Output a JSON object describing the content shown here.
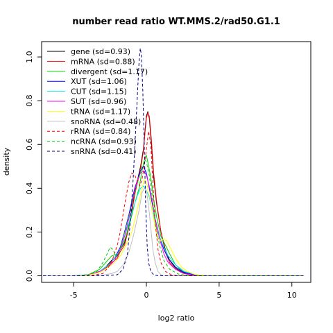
{
  "chart_data": {
    "type": "line",
    "title": "number read ratio WT.MMS.2/rad50.G1.1",
    "xlabel": "log2 ratio",
    "ylabel": "density",
    "xlim": [
      -7.2,
      11.3
    ],
    "ylim": [
      -0.03,
      1.07
    ],
    "x_ticks": [
      -5,
      0,
      5,
      10
    ],
    "y_ticks": [
      0.0,
      0.2,
      0.4,
      0.6,
      0.8,
      1.0
    ],
    "x_tick_labels": [
      "-5",
      "0",
      "5",
      "10"
    ],
    "y_tick_labels": [
      "0.0",
      "0.2",
      "0.4",
      "0.6",
      "0.8",
      "1.0"
    ],
    "grid": false,
    "legend_position": "top-left",
    "series": [
      {
        "name": "gene (sd=0.93)",
        "color": "#000000",
        "dash": "solid",
        "points": [
          [
            -7.1,
            0
          ],
          [
            -5,
            0
          ],
          [
            -4,
            0.005
          ],
          [
            -3.2,
            0.02
          ],
          [
            -2.8,
            0.04
          ],
          [
            -2.4,
            0.07
          ],
          [
            -2.0,
            0.09
          ],
          [
            -1.8,
            0.12
          ],
          [
            -1.5,
            0.15
          ],
          [
            -1.2,
            0.23
          ],
          [
            -1.0,
            0.3
          ],
          [
            -0.8,
            0.38
          ],
          [
            -0.6,
            0.44
          ],
          [
            -0.4,
            0.5
          ],
          [
            -0.2,
            0.58
          ],
          [
            -0.1,
            0.66
          ],
          [
            0.0,
            0.73
          ],
          [
            0.1,
            0.75
          ],
          [
            0.2,
            0.72
          ],
          [
            0.35,
            0.6
          ],
          [
            0.5,
            0.45
          ],
          [
            0.7,
            0.33
          ],
          [
            1.0,
            0.2
          ],
          [
            1.3,
            0.12
          ],
          [
            1.6,
            0.07
          ],
          [
            2.0,
            0.035
          ],
          [
            2.5,
            0.015
          ],
          [
            3.0,
            0.005
          ],
          [
            4,
            0
          ],
          [
            10.8,
            0
          ]
        ]
      },
      {
        "name": "mRNA (sd=0.88)",
        "color": "#ff0000",
        "dash": "solid",
        "points": [
          [
            -7.1,
            0
          ],
          [
            -5,
            0
          ],
          [
            -4,
            0.005
          ],
          [
            -3.2,
            0.02
          ],
          [
            -2.8,
            0.035
          ],
          [
            -2.4,
            0.06
          ],
          [
            -2.0,
            0.08
          ],
          [
            -1.8,
            0.11
          ],
          [
            -1.5,
            0.14
          ],
          [
            -1.2,
            0.22
          ],
          [
            -1.0,
            0.29
          ],
          [
            -0.8,
            0.37
          ],
          [
            -0.6,
            0.43
          ],
          [
            -0.4,
            0.49
          ],
          [
            -0.2,
            0.57
          ],
          [
            -0.1,
            0.65
          ],
          [
            0.0,
            0.72
          ],
          [
            0.1,
            0.745
          ],
          [
            0.2,
            0.73
          ],
          [
            0.35,
            0.62
          ],
          [
            0.5,
            0.47
          ],
          [
            0.7,
            0.34
          ],
          [
            1.0,
            0.2
          ],
          [
            1.3,
            0.11
          ],
          [
            1.6,
            0.06
          ],
          [
            2.0,
            0.03
          ],
          [
            2.5,
            0.012
          ],
          [
            3.0,
            0.004
          ],
          [
            4,
            0
          ],
          [
            10.8,
            0
          ]
        ]
      },
      {
        "name": "divergent (sd=1.17)",
        "color": "#00cd00",
        "dash": "solid",
        "points": [
          [
            -7.1,
            0
          ],
          [
            -5,
            0
          ],
          [
            -4,
            0.005
          ],
          [
            -3.2,
            0.03
          ],
          [
            -2.8,
            0.06
          ],
          [
            -2.4,
            0.09
          ],
          [
            -2.0,
            0.1
          ],
          [
            -1.7,
            0.13
          ],
          [
            -1.4,
            0.18
          ],
          [
            -1.1,
            0.25
          ],
          [
            -0.8,
            0.33
          ],
          [
            -0.5,
            0.4
          ],
          [
            -0.3,
            0.48
          ],
          [
            -0.1,
            0.54
          ],
          [
            0.0,
            0.55
          ],
          [
            0.1,
            0.52
          ],
          [
            0.3,
            0.45
          ],
          [
            0.5,
            0.35
          ],
          [
            0.7,
            0.27
          ],
          [
            1.0,
            0.18
          ],
          [
            1.3,
            0.14
          ],
          [
            1.6,
            0.1
          ],
          [
            2.0,
            0.05
          ],
          [
            2.5,
            0.02
          ],
          [
            3.2,
            0.005
          ],
          [
            4,
            0
          ],
          [
            10.8,
            0
          ]
        ]
      },
      {
        "name": "XUT (sd=1.06)",
        "color": "#0000ff",
        "dash": "solid",
        "points": [
          [
            -7.1,
            0
          ],
          [
            -5,
            0
          ],
          [
            -4,
            0.004
          ],
          [
            -3.2,
            0.02
          ],
          [
            -2.6,
            0.05
          ],
          [
            -2.2,
            0.08
          ],
          [
            -1.8,
            0.13
          ],
          [
            -1.5,
            0.2
          ],
          [
            -1.2,
            0.28
          ],
          [
            -1.0,
            0.34
          ],
          [
            -0.8,
            0.4
          ],
          [
            -0.6,
            0.44
          ],
          [
            -0.4,
            0.48
          ],
          [
            -0.2,
            0.5
          ],
          [
            0.0,
            0.47
          ],
          [
            0.2,
            0.4
          ],
          [
            0.4,
            0.33
          ],
          [
            0.6,
            0.26
          ],
          [
            0.9,
            0.18
          ],
          [
            1.2,
            0.12
          ],
          [
            1.5,
            0.08
          ],
          [
            2.0,
            0.04
          ],
          [
            2.6,
            0.015
          ],
          [
            3.4,
            0.003
          ],
          [
            4.2,
            0
          ],
          [
            10.8,
            0
          ]
        ]
      },
      {
        "name": "CUT (sd=1.15)",
        "color": "#00e5ee",
        "dash": "solid",
        "points": [
          [
            -7.1,
            0
          ],
          [
            -5,
            0
          ],
          [
            -4,
            0.005
          ],
          [
            -3.2,
            0.02
          ],
          [
            -2.6,
            0.05
          ],
          [
            -2.2,
            0.08
          ],
          [
            -1.8,
            0.12
          ],
          [
            -1.5,
            0.18
          ],
          [
            -1.2,
            0.24
          ],
          [
            -1.0,
            0.29
          ],
          [
            -0.8,
            0.33
          ],
          [
            -0.6,
            0.37
          ],
          [
            -0.4,
            0.4
          ],
          [
            -0.2,
            0.41
          ],
          [
            0.0,
            0.39
          ],
          [
            0.2,
            0.36
          ],
          [
            0.4,
            0.3
          ],
          [
            0.6,
            0.25
          ],
          [
            0.9,
            0.18
          ],
          [
            1.2,
            0.13
          ],
          [
            1.5,
            0.09
          ],
          [
            2.0,
            0.05
          ],
          [
            2.6,
            0.02
          ],
          [
            3.4,
            0.005
          ],
          [
            4.2,
            0
          ],
          [
            10.8,
            0
          ]
        ]
      },
      {
        "name": "SUT (sd=0.96)",
        "color": "#ff00ff",
        "dash": "solid",
        "points": [
          [
            -7.1,
            0
          ],
          [
            -5,
            0
          ],
          [
            -4,
            0.004
          ],
          [
            -3.2,
            0.02
          ],
          [
            -2.6,
            0.04
          ],
          [
            -2.2,
            0.07
          ],
          [
            -1.8,
            0.12
          ],
          [
            -1.5,
            0.18
          ],
          [
            -1.2,
            0.26
          ],
          [
            -1.0,
            0.33
          ],
          [
            -0.8,
            0.39
          ],
          [
            -0.6,
            0.44
          ],
          [
            -0.4,
            0.47
          ],
          [
            -0.2,
            0.48
          ],
          [
            0.0,
            0.46
          ],
          [
            0.2,
            0.41
          ],
          [
            0.4,
            0.34
          ],
          [
            0.6,
            0.26
          ],
          [
            0.9,
            0.17
          ],
          [
            1.2,
            0.1
          ],
          [
            1.5,
            0.06
          ],
          [
            2.0,
            0.03
          ],
          [
            2.6,
            0.01
          ],
          [
            3.4,
            0.002
          ],
          [
            4.2,
            0
          ],
          [
            10.8,
            0
          ]
        ]
      },
      {
        "name": "tRNA (sd=1.17)",
        "color": "#ffff00",
        "dash": "solid",
        "points": [
          [
            -7.1,
            0
          ],
          [
            -5,
            0
          ],
          [
            -4,
            0.003
          ],
          [
            -3.2,
            0.015
          ],
          [
            -2.6,
            0.04
          ],
          [
            -2.2,
            0.06
          ],
          [
            -1.8,
            0.09
          ],
          [
            -1.4,
            0.14
          ],
          [
            -1.0,
            0.2
          ],
          [
            -0.7,
            0.28
          ],
          [
            -0.5,
            0.34
          ],
          [
            -0.3,
            0.4
          ],
          [
            -0.15,
            0.44
          ],
          [
            0.0,
            0.43
          ],
          [
            0.2,
            0.37
          ],
          [
            0.4,
            0.3
          ],
          [
            0.6,
            0.22
          ],
          [
            0.8,
            0.17
          ],
          [
            1.0,
            0.16
          ],
          [
            1.2,
            0.17
          ],
          [
            1.4,
            0.16
          ],
          [
            1.7,
            0.12
          ],
          [
            2.0,
            0.08
          ],
          [
            2.4,
            0.04
          ],
          [
            2.8,
            0.02
          ],
          [
            3.4,
            0.005
          ],
          [
            4.2,
            0
          ],
          [
            10.8,
            0
          ]
        ]
      },
      {
        "name": "snoRNA (sd=0.48)",
        "color": "#bebebe",
        "dash": "solid",
        "points": [
          [
            -7.1,
            0
          ],
          [
            -4,
            0
          ],
          [
            -3.0,
            0.003
          ],
          [
            -2.4,
            0.01
          ],
          [
            -2.0,
            0.02
          ],
          [
            -1.6,
            0.05
          ],
          [
            -1.3,
            0.09
          ],
          [
            -1.1,
            0.13
          ],
          [
            -0.9,
            0.18
          ],
          [
            -0.7,
            0.24
          ],
          [
            -0.5,
            0.3
          ],
          [
            -0.3,
            0.38
          ],
          [
            -0.15,
            0.4
          ],
          [
            0.0,
            0.39
          ],
          [
            0.15,
            0.32
          ],
          [
            0.3,
            0.22
          ],
          [
            0.45,
            0.12
          ],
          [
            0.6,
            0.06
          ],
          [
            0.8,
            0.02
          ],
          [
            1.0,
            0.005
          ],
          [
            1.3,
            0
          ],
          [
            10.8,
            0
          ]
        ]
      },
      {
        "name": "rRNA (sd=0.84)",
        "color": "#ff0000",
        "dash": "dashed",
        "points": [
          [
            -7.1,
            0
          ],
          [
            -4,
            0
          ],
          [
            -3.0,
            0.01
          ],
          [
            -2.6,
            0.04
          ],
          [
            -2.3,
            0.08
          ],
          [
            -2.0,
            0.14
          ],
          [
            -1.8,
            0.2
          ],
          [
            -1.6,
            0.28
          ],
          [
            -1.4,
            0.36
          ],
          [
            -1.2,
            0.43
          ],
          [
            -1.0,
            0.47
          ],
          [
            -0.8,
            0.46
          ],
          [
            -0.6,
            0.43
          ],
          [
            -0.45,
            0.41
          ],
          [
            -0.3,
            0.44
          ],
          [
            -0.15,
            0.5
          ],
          [
            0.0,
            0.58
          ],
          [
            0.15,
            0.66
          ],
          [
            0.3,
            0.6
          ],
          [
            0.45,
            0.42
          ],
          [
            0.6,
            0.25
          ],
          [
            0.8,
            0.12
          ],
          [
            1.0,
            0.06
          ],
          [
            1.3,
            0.02
          ],
          [
            1.7,
            0.005
          ],
          [
            2.2,
            0
          ],
          [
            10.8,
            0
          ]
        ]
      },
      {
        "name": "ncRNA (sd=0.93)",
        "color": "#00cd00",
        "dash": "dashed",
        "points": [
          [
            -7.1,
            0
          ],
          [
            -5,
            0
          ],
          [
            -4,
            0.005
          ],
          [
            -3.4,
            0.02
          ],
          [
            -3.0,
            0.06
          ],
          [
            -2.7,
            0.1
          ],
          [
            -2.5,
            0.13
          ],
          [
            -2.3,
            0.12
          ],
          [
            -2.1,
            0.09
          ],
          [
            -1.9,
            0.1
          ],
          [
            -1.7,
            0.15
          ],
          [
            -1.4,
            0.22
          ],
          [
            -1.1,
            0.3
          ],
          [
            -0.8,
            0.38
          ],
          [
            -0.5,
            0.45
          ],
          [
            -0.3,
            0.5
          ],
          [
            -0.1,
            0.53
          ],
          [
            0.0,
            0.52
          ],
          [
            0.2,
            0.46
          ],
          [
            0.4,
            0.36
          ],
          [
            0.6,
            0.25
          ],
          [
            0.9,
            0.14
          ],
          [
            1.2,
            0.07
          ],
          [
            1.6,
            0.03
          ],
          [
            2.2,
            0.008
          ],
          [
            3.0,
            0
          ],
          [
            10.8,
            0
          ]
        ]
      },
      {
        "name": "snRNA (sd=0.41)",
        "color": "#00008b",
        "dash": "dashed",
        "points": [
          [
            -7.1,
            0
          ],
          [
            -3,
            0
          ],
          [
            -2.0,
            0.005
          ],
          [
            -1.6,
            0.03
          ],
          [
            -1.3,
            0.1
          ],
          [
            -1.1,
            0.25
          ],
          [
            -0.9,
            0.45
          ],
          [
            -0.75,
            0.65
          ],
          [
            -0.6,
            0.85
          ],
          [
            -0.5,
            0.98
          ],
          [
            -0.42,
            1.04
          ],
          [
            -0.35,
            1.01
          ],
          [
            -0.25,
            0.85
          ],
          [
            -0.15,
            0.6
          ],
          [
            -0.05,
            0.32
          ],
          [
            0.05,
            0.14
          ],
          [
            0.15,
            0.06
          ],
          [
            0.3,
            0.02
          ],
          [
            0.5,
            0.005
          ],
          [
            0.8,
            0
          ],
          [
            10.8,
            0
          ]
        ]
      }
    ]
  }
}
